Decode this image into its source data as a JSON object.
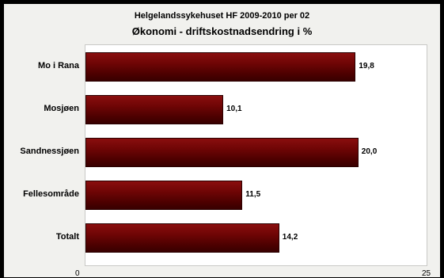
{
  "chart_data": {
    "type": "bar",
    "orientation": "horizontal",
    "title": "Helgelandssykehuset HF 2009-2010 per 02",
    "subtitle": "Økonomi - driftskostnadsendring i %",
    "categories": [
      "Mo i Rana",
      "Mosjøen",
      "Sandnessjøen",
      "Fellesområde",
      "Totalt"
    ],
    "values": [
      19.8,
      10.1,
      20.0,
      11.5,
      14.2
    ],
    "value_labels": [
      "19,8",
      "10,1",
      "20,0",
      "11,5",
      "14,2"
    ],
    "xlim": [
      0,
      25
    ],
    "x_ticks": [
      "0",
      "25"
    ],
    "grid": false,
    "legend": "none",
    "bar_color": "#6e0505"
  }
}
